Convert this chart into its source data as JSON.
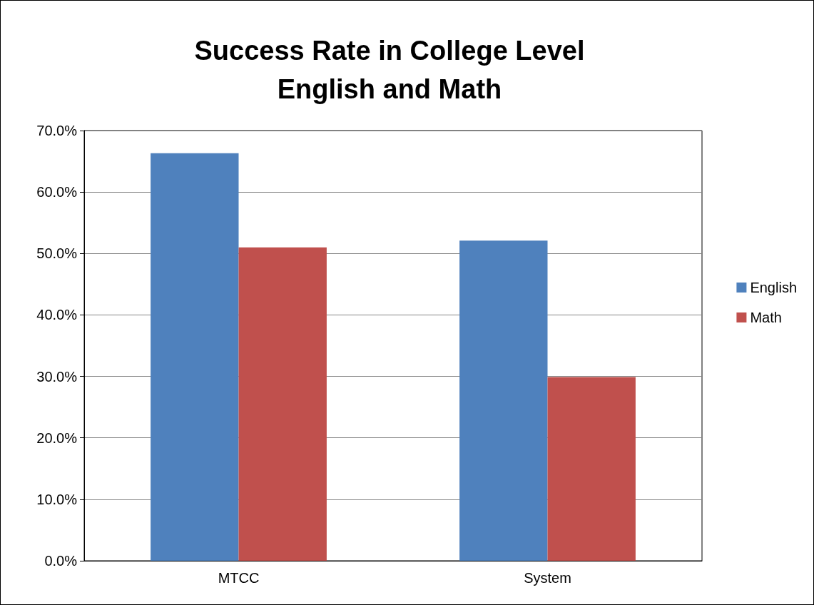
{
  "chart_data": {
    "type": "bar",
    "title": "Success Rate in College Level\nEnglish and Math",
    "categories": [
      "MTCC",
      "System"
    ],
    "series": [
      {
        "name": "English",
        "color": "#4f81bd",
        "values": [
          66.3,
          52.1
        ]
      },
      {
        "name": "Math",
        "color": "#c0504d",
        "values": [
          51.0,
          29.9
        ]
      }
    ],
    "ylim": [
      0,
      70
    ],
    "yticks": [
      {
        "value": 0,
        "label": "0.0%"
      },
      {
        "value": 10,
        "label": "10.0%"
      },
      {
        "value": 20,
        "label": "20.0%"
      },
      {
        "value": 30,
        "label": "30.0%"
      },
      {
        "value": 40,
        "label": "40.0%"
      },
      {
        "value": 50,
        "label": "50.0%"
      },
      {
        "value": 60,
        "label": "60.0%"
      },
      {
        "value": 70,
        "label": "70.0%"
      }
    ],
    "grid": "y",
    "legend": "right"
  }
}
